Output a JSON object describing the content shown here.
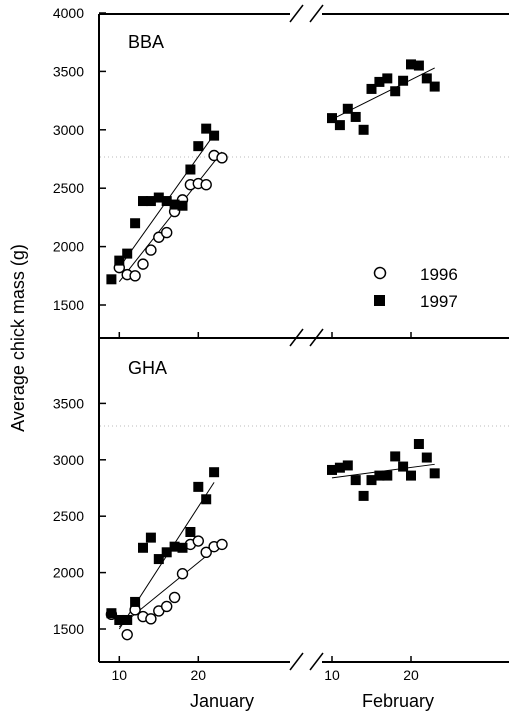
{
  "figure": {
    "ylabel": "Average chick mass (g)",
    "month_labels": [
      "January",
      "February"
    ],
    "legend": {
      "series_1996": "1996",
      "series_1997": "1997"
    },
    "colors": {
      "ink": "#000000",
      "guide": "#bbbbbb"
    }
  },
  "chart_data": [
    {
      "type": "scatter",
      "panel": "BBA",
      "title": "BBA",
      "ylim": [
        1250,
        4000
      ],
      "yticks": [
        1500,
        2000,
        2500,
        3000,
        3500,
        4000
      ],
      "xticks": [
        10,
        20
      ],
      "series": [
        {
          "name": "1996",
          "marker": "open-circle",
          "points": [
            [
              10,
              1820
            ],
            [
              11,
              1760
            ],
            [
              12,
              1750
            ],
            [
              13,
              1850
            ],
            [
              14,
              1970
            ],
            [
              15,
              2080
            ],
            [
              16,
              2120
            ],
            [
              17,
              2300
            ],
            [
              18,
              2400
            ],
            [
              19,
              2530
            ],
            [
              20,
              2540
            ],
            [
              21,
              2530
            ],
            [
              22,
              2780
            ],
            [
              23,
              2760
            ]
          ],
          "fit": {
            "x": [
              10,
              23
            ],
            "y": [
              1700,
              2810
            ]
          }
        },
        {
          "name": "1997",
          "marker": "filled-square",
          "points": [
            [
              9,
              1720
            ],
            [
              10,
              1880
            ],
            [
              11,
              1940
            ],
            [
              12,
              2200
            ],
            [
              13,
              2390
            ],
            [
              14,
              2390
            ],
            [
              15,
              2420
            ],
            [
              16,
              2390
            ],
            [
              17,
              2360
            ],
            [
              18,
              2350
            ],
            [
              19,
              2660
            ],
            [
              20,
              2860
            ],
            [
              21,
              3010
            ],
            [
              22,
              2950
            ],
            [
              41,
              3100
            ],
            [
              42,
              3040
            ],
            [
              43,
              3180
            ],
            [
              44,
              3110
            ],
            [
              45,
              3000
            ],
            [
              46,
              3350
            ],
            [
              47,
              3410
            ],
            [
              48,
              3440
            ],
            [
              49,
              3330
            ],
            [
              50,
              3420
            ],
            [
              51,
              3560
            ],
            [
              52,
              3550
            ],
            [
              53,
              3440
            ],
            [
              54,
              3370
            ]
          ],
          "fit_segments": [
            {
              "x": [
                10,
                22
              ],
              "y": [
                1820,
                2960
              ]
            },
            {
              "x": [
                41,
                54
              ],
              "y": [
                3090,
                3530
              ]
            }
          ]
        }
      ]
    },
    {
      "type": "scatter",
      "panel": "GHA",
      "title": "GHA",
      "ylim": [
        1250,
        4000
      ],
      "yticks": [
        1500,
        2000,
        2500,
        3000,
        3500
      ],
      "xticks": [
        10,
        20
      ],
      "series": [
        {
          "name": "1996",
          "marker": "open-circle",
          "points": [
            [
              9,
              1630
            ],
            [
              11,
              1450
            ],
            [
              12,
              1670
            ],
            [
              13,
              1610
            ],
            [
              14,
              1590
            ],
            [
              15,
              1660
            ],
            [
              16,
              1700
            ],
            [
              17,
              1780
            ],
            [
              18,
              1990
            ],
            [
              19,
              2250
            ],
            [
              20,
              2280
            ],
            [
              21,
              2180
            ],
            [
              22,
              2230
            ],
            [
              23,
              2250
            ]
          ],
          "fit": {
            "x": [
              10,
              23
            ],
            "y": [
              1520,
              2260
            ]
          }
        },
        {
          "name": "1997",
          "marker": "filled-square",
          "points": [
            [
              9,
              1640
            ],
            [
              10,
              1580
            ],
            [
              11,
              1580
            ],
            [
              12,
              1740
            ],
            [
              13,
              2220
            ],
            [
              14,
              2310
            ],
            [
              15,
              2120
            ],
            [
              16,
              2180
            ],
            [
              17,
              2230
            ],
            [
              18,
              2220
            ],
            [
              19,
              2360
            ],
            [
              20,
              2760
            ],
            [
              21,
              2650
            ],
            [
              22,
              2890
            ],
            [
              41,
              2910
            ],
            [
              42,
              2930
            ],
            [
              43,
              2950
            ],
            [
              44,
              2820
            ],
            [
              45,
              2680
            ],
            [
              46,
              2820
            ],
            [
              47,
              2860
            ],
            [
              48,
              2860
            ],
            [
              49,
              3030
            ],
            [
              50,
              2940
            ],
            [
              51,
              2860
            ],
            [
              52,
              3140
            ],
            [
              53,
              3020
            ],
            [
              54,
              2880
            ]
          ],
          "fit_segments": [
            {
              "x": [
                10,
                22
              ],
              "y": [
                1500,
                2800
              ]
            },
            {
              "x": [
                41,
                54
              ],
              "y": [
                2840,
                2960
              ]
            }
          ]
        }
      ]
    }
  ]
}
